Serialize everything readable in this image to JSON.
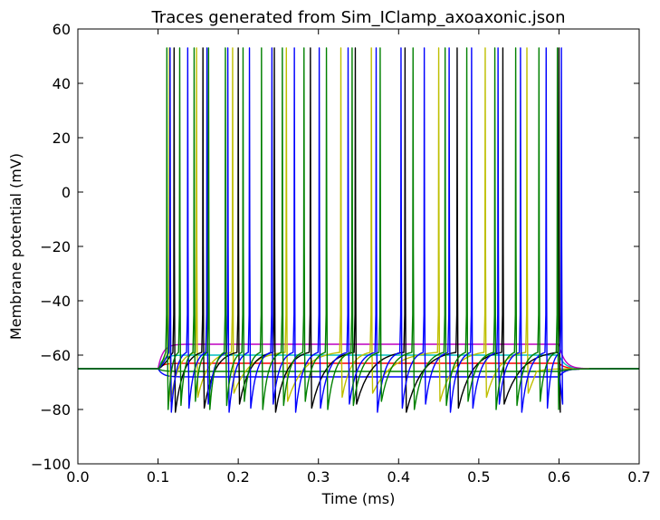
{
  "chart_data": {
    "type": "line",
    "title": "Traces generated from Sim_IClamp_axoaxonic.json",
    "xlabel": "Time (ms)",
    "ylabel": "Membrane potential (mV)",
    "xlim": [
      0.0,
      0.7
    ],
    "ylim": [
      -100,
      60
    ],
    "x_ticks": [
      "0.0",
      "0.1",
      "0.2",
      "0.3",
      "0.4",
      "0.5",
      "0.6",
      "0.7"
    ],
    "y_ticks": [
      "60",
      "40",
      "20",
      "0",
      "−20",
      "−40",
      "−60",
      "−80",
      "−100"
    ],
    "grid": false,
    "legend": "none",
    "baseline_mV": -65,
    "stim_start": 0.1,
    "stim_end": 0.6,
    "series": [
      {
        "color": "#0000ff",
        "kind": "plateau",
        "plateau": -68,
        "initial_dip": -67
      },
      {
        "color": "#008000",
        "kind": "plateau",
        "plateau": -66
      },
      {
        "color": "#ff0000",
        "kind": "plateau",
        "plateau": -63
      },
      {
        "color": "#00bfbf",
        "kind": "plateau",
        "plateau": -60
      },
      {
        "color": "#bf00bf",
        "kind": "plateau",
        "plateau": -56
      },
      {
        "color": "#bfbf00",
        "kind": "spiking",
        "peak": 53,
        "trough": -77,
        "spike_times": [
          0.114,
          0.148,
          0.193,
          0.26,
          0.328,
          0.366,
          0.45,
          0.508,
          0.56
        ]
      },
      {
        "color": "#000000",
        "kind": "spiking",
        "peak": 53,
        "trough": -81,
        "spike_times": [
          0.12,
          0.156,
          0.2,
          0.245,
          0.29,
          0.346,
          0.408,
          0.473,
          0.53,
          0.6
        ]
      },
      {
        "color": "#0000ff",
        "kind": "spiking",
        "peak": 53,
        "trough": -81,
        "spike_times": [
          0.115,
          0.137,
          0.161,
          0.187,
          0.214,
          0.242,
          0.27,
          0.301,
          0.337,
          0.372,
          0.403,
          0.432,
          0.463,
          0.491,
          0.524,
          0.552,
          0.584,
          0.603
        ]
      },
      {
        "color": "#008000",
        "kind": "spiking",
        "peak": 53,
        "trough": -80,
        "spike_times": [
          0.111,
          0.127,
          0.145,
          0.163,
          0.184,
          0.206,
          0.229,
          0.255,
          0.282,
          0.31,
          0.342,
          0.377,
          0.418,
          0.458,
          0.485,
          0.52,
          0.546,
          0.575,
          0.598
        ]
      }
    ]
  }
}
